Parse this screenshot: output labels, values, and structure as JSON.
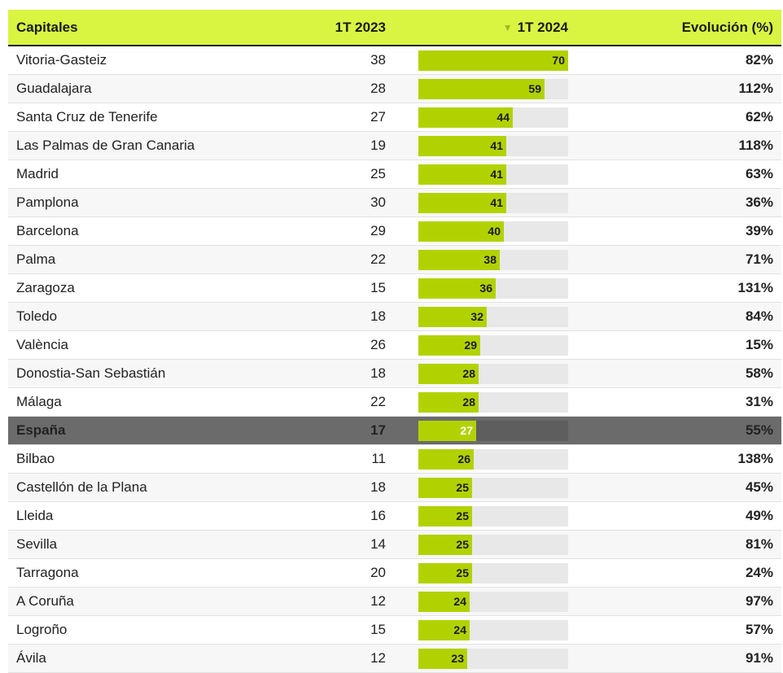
{
  "table": {
    "headers": {
      "city": "Capitales",
      "y2023": "1T 2023",
      "y2024": "1T 2024",
      "evolution": "Evolución (%)"
    },
    "highlight_row": "España"
  },
  "chart_data": {
    "type": "table",
    "columns": [
      "Capitales",
      "1T 2023",
      "1T 2024",
      "Evolución (%)"
    ],
    "sort": {
      "column": "1T 2024",
      "order": "descending"
    },
    "bar_column": "1T 2024",
    "bar_max": 70,
    "colors": {
      "header": "#d9f542",
      "bar": "#b2d200",
      "bar_track": "#e8e8e8",
      "highlight_row": "#6b6b6b"
    },
    "rows": [
      {
        "city": "Vitoria-Gasteiz",
        "y2023": 38,
        "y2024": 70,
        "evolution": "82%"
      },
      {
        "city": "Guadalajara",
        "y2023": 28,
        "y2024": 59,
        "evolution": "112%"
      },
      {
        "city": "Santa Cruz de Tenerife",
        "y2023": 27,
        "y2024": 44,
        "evolution": "62%"
      },
      {
        "city": "Las Palmas de Gran Canaria",
        "y2023": 19,
        "y2024": 41,
        "evolution": "118%"
      },
      {
        "city": "Madrid",
        "y2023": 25,
        "y2024": 41,
        "evolution": "63%"
      },
      {
        "city": "Pamplona",
        "y2023": 30,
        "y2024": 41,
        "evolution": "36%"
      },
      {
        "city": "Barcelona",
        "y2023": 29,
        "y2024": 40,
        "evolution": "39%"
      },
      {
        "city": "Palma",
        "y2023": 22,
        "y2024": 38,
        "evolution": "71%"
      },
      {
        "city": "Zaragoza",
        "y2023": 15,
        "y2024": 36,
        "evolution": "131%"
      },
      {
        "city": "Toledo",
        "y2023": 18,
        "y2024": 32,
        "evolution": "84%"
      },
      {
        "city": "València",
        "y2023": 26,
        "y2024": 29,
        "evolution": "15%"
      },
      {
        "city": "Donostia-San Sebastián",
        "y2023": 18,
        "y2024": 28,
        "evolution": "58%"
      },
      {
        "city": "Málaga",
        "y2023": 22,
        "y2024": 28,
        "evolution": "31%"
      },
      {
        "city": "España",
        "y2023": 17,
        "y2024": 27,
        "evolution": "55%"
      },
      {
        "city": "Bilbao",
        "y2023": 11,
        "y2024": 26,
        "evolution": "138%"
      },
      {
        "city": "Castellón de la Plana",
        "y2023": 18,
        "y2024": 25,
        "evolution": "45%"
      },
      {
        "city": "Lleida",
        "y2023": 16,
        "y2024": 25,
        "evolution": "49%"
      },
      {
        "city": "Sevilla",
        "y2023": 14,
        "y2024": 25,
        "evolution": "81%"
      },
      {
        "city": "Tarragona",
        "y2023": 20,
        "y2024": 25,
        "evolution": "24%"
      },
      {
        "city": "A Coruña",
        "y2023": 12,
        "y2024": 24,
        "evolution": "97%"
      },
      {
        "city": "Logroño",
        "y2023": 15,
        "y2024": 24,
        "evolution": "57%"
      },
      {
        "city": "Ávila",
        "y2023": 12,
        "y2024": 23,
        "evolution": "91%"
      }
    ]
  }
}
